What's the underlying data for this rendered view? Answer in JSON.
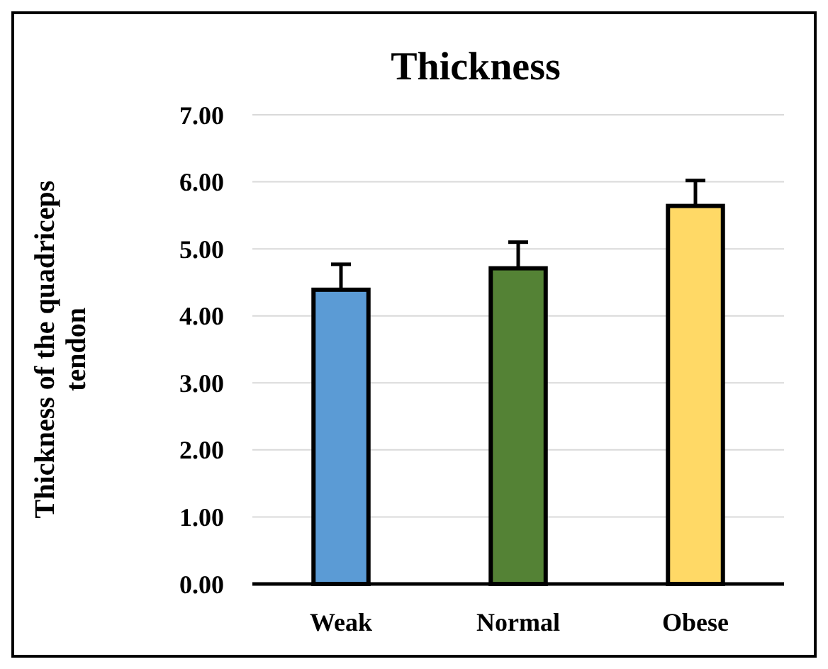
{
  "chart_data": {
    "type": "bar",
    "title": "Thickness",
    "ylabel": "Thickness of the quadriceps tendon",
    "categories": [
      "Weak",
      "Normal",
      "Obese"
    ],
    "values": [
      4.39,
      4.71,
      5.64
    ],
    "colors": [
      "#5b9bd5",
      "#548235",
      "#ffd966"
    ],
    "errors": [
      [
        4.39,
        4.77
      ],
      [
        4.71,
        5.1
      ],
      [
        5.64,
        6.02
      ]
    ],
    "ylim": [
      0,
      7
    ],
    "yticks": [
      {
        "value": 0,
        "label": "0.00"
      },
      {
        "value": 1,
        "label": "1.00"
      },
      {
        "value": 2,
        "label": "2.00"
      },
      {
        "value": 3,
        "label": "3.00"
      },
      {
        "value": 4,
        "label": "4.00"
      },
      {
        "value": 5,
        "label": "5.00"
      },
      {
        "value": 6,
        "label": "6.00"
      },
      {
        "value": 7,
        "label": "7.00"
      }
    ],
    "grid": "y"
  }
}
